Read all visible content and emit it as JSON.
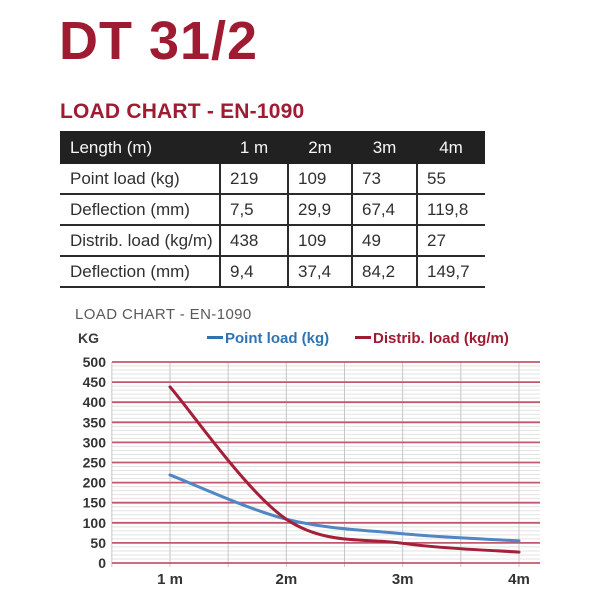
{
  "page": {
    "title": "DT 31/2",
    "section_heading": "LOAD CHART - EN-1090"
  },
  "table": {
    "header": [
      "Length (m)",
      "1 m",
      "2m",
      "3m",
      "4m"
    ],
    "rows": [
      {
        "label": "Point load (kg)",
        "values": [
          "219",
          "109",
          "73",
          "55"
        ]
      },
      {
        "label": "Deflection (mm)",
        "values": [
          "7,5",
          "29,9",
          "67,4",
          "119,8"
        ]
      },
      {
        "label": "Distrib. load (kg/m)",
        "values": [
          "438",
          "109",
          "49",
          "27"
        ]
      },
      {
        "label": "Deflection (mm)",
        "values": [
          "9,4",
          "37,4",
          "84,2",
          "149,7"
        ]
      }
    ]
  },
  "chart": {
    "subtitle": "LOAD CHART - EN-1090",
    "y_axis_label": "KG"
  },
  "chart_data": {
    "type": "line",
    "title": "LOAD CHART - EN-1090",
    "ylabel": "KG",
    "categories": [
      "1 m",
      "2m",
      "3m",
      "4m"
    ],
    "x_values_m": [
      1,
      2,
      3,
      4
    ],
    "series": [
      {
        "name": "Point load (kg)",
        "color": "#4E87C3",
        "text_color": "#2E74B5",
        "values": [
          219,
          109,
          73,
          55
        ]
      },
      {
        "name": "Distrib. load (kg/m)",
        "color": "#A32038",
        "text_color": "#9E1B32",
        "values": [
          438,
          109,
          49,
          27
        ]
      }
    ],
    "ylim": [
      0,
      500
    ],
    "y_major_step": 50,
    "y_minor_step": 10,
    "x_minor_step_m": 0.5,
    "grid": {
      "major_color": "#C0596D",
      "minor_color": "#E3E3E3",
      "vertical_color": "#C6C6C6",
      "grid_on": true
    },
    "legend_position": "top"
  }
}
